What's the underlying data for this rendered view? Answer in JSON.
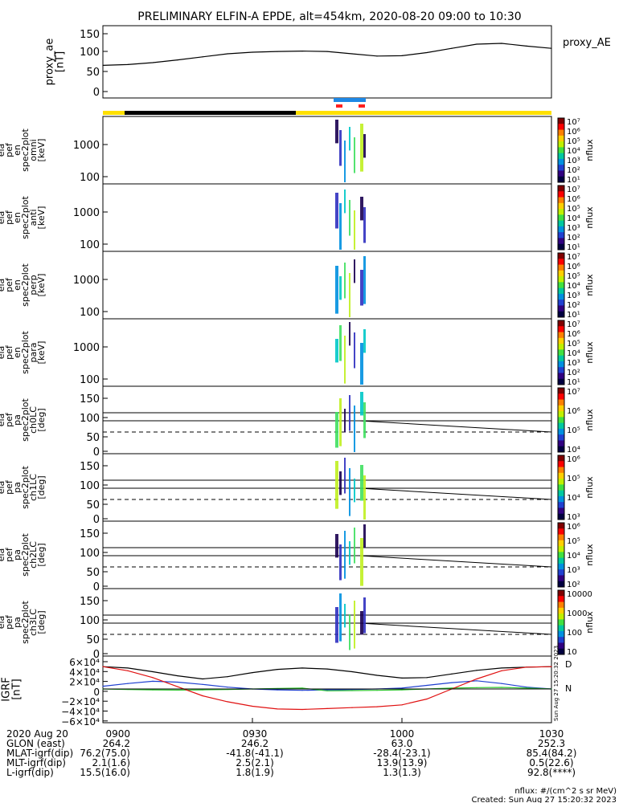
{
  "title": "PRELIMINARY ELFIN-A EPDE, alt=454km, 2020-08-20 09:00 to 10:30",
  "colors": {
    "status_bar": "#ffe000",
    "eclipse_bar": "#000000",
    "fast_survey": "#1e88e5",
    "science_zone": "#ff2020",
    "grf_total": "#000000",
    "grf_x": "#1f3fd0",
    "grf_y": "#2cc52c",
    "grf_z": "#e01010"
  },
  "panels": [
    {
      "id": "proxy_ae",
      "ylabel": [
        "proxy_ae",
        "[nT]"
      ],
      "right_label": "proxy_AE",
      "ticks": [
        "150",
        "100",
        "50",
        "0"
      ]
    },
    {
      "id": "omni",
      "ylabel": [
        "ela",
        "pef",
        "en",
        "spec2plot",
        "omni",
        "[keV]"
      ],
      "ticks": [
        "1000",
        "100"
      ],
      "bar_label": "nflux",
      "bar_ticks": [
        "10⁷",
        "10⁶",
        "10⁵",
        "10⁴",
        "10³",
        "10²",
        "10¹"
      ]
    },
    {
      "id": "anti",
      "ylabel": [
        "ela",
        "pef",
        "en",
        "spec2plot",
        "anti",
        "[keV]"
      ],
      "ticks": [
        "1000",
        "100"
      ],
      "bar_label": "nflux",
      "bar_ticks": [
        "10⁷",
        "10⁶",
        "10⁵",
        "10⁴",
        "10³",
        "10²",
        "10¹"
      ]
    },
    {
      "id": "perp",
      "ylabel": [
        "ela",
        "pef",
        "en",
        "spec2plot",
        "perp",
        "[keV]"
      ],
      "ticks": [
        "1000",
        "100"
      ],
      "bar_label": "nflux",
      "bar_ticks": [
        "10⁷",
        "10⁶",
        "10⁵",
        "10⁴",
        "10³",
        "10²",
        "10¹"
      ]
    },
    {
      "id": "para",
      "ylabel": [
        "ela",
        "pef",
        "en",
        "spec2plot",
        "para",
        "[keV]"
      ],
      "ticks": [
        "1000",
        "100"
      ],
      "bar_label": "nflux",
      "bar_ticks": [
        "10⁷",
        "10⁶",
        "10⁵",
        "10⁴",
        "10³",
        "10²",
        "10¹"
      ]
    },
    {
      "id": "ch0LC",
      "ylabel": [
        "ela",
        "pef",
        "pa",
        "spec2plot",
        "ch0LC",
        "[deg]"
      ],
      "ticks": [
        "150",
        "100",
        "50",
        "0"
      ],
      "bar_label": "nflux",
      "bar_ticks": [
        "10⁷",
        "10⁶",
        "10⁵",
        "10⁴"
      ]
    },
    {
      "id": "ch1LC",
      "ylabel": [
        "ela",
        "pef",
        "pa",
        "spec2plot",
        "ch1LC",
        "[deg]"
      ],
      "ticks": [
        "150",
        "100",
        "50",
        "0"
      ],
      "bar_label": "nflux",
      "bar_ticks": [
        "10⁶",
        "10⁵",
        "10⁴",
        "10³"
      ]
    },
    {
      "id": "ch2LC",
      "ylabel": [
        "ela",
        "pef",
        "pa",
        "spec2plot",
        "ch2LC",
        "[deg]"
      ],
      "ticks": [
        "150",
        "100",
        "50",
        "0"
      ],
      "bar_label": "nflux",
      "bar_ticks": [
        "10⁶",
        "10⁵",
        "10⁴",
        "10³",
        "10²"
      ]
    },
    {
      "id": "ch3LC",
      "ylabel": [
        "ela",
        "pef",
        "pa",
        "spec2plot",
        "ch3LC",
        "[deg]"
      ],
      "ticks": [
        "150",
        "100",
        "50",
        "0"
      ],
      "bar_label": "nflux",
      "bar_ticks": [
        "10000",
        "1000",
        "100",
        "10"
      ]
    },
    {
      "id": "igrf",
      "ylabel": [
        "IGRF",
        "[nT]"
      ],
      "ticks": [
        "6×10⁴",
        "4×10⁴",
        "2×10⁴",
        "0",
        "−2×10⁴",
        "−4×10⁴",
        "−6×10⁴"
      ],
      "right_marks": [
        "D",
        "N"
      ],
      "side_stamp": "Sun Aug 27 15:20:32 2023"
    }
  ],
  "chart_data": [
    {
      "type": "line",
      "panel": "proxy_ae",
      "x": [
        "09:00",
        "09:05",
        "09:10",
        "09:15",
        "09:20",
        "09:25",
        "09:30",
        "09:35",
        "09:40",
        "09:45",
        "09:50",
        "09:55",
        "10:00",
        "10:05",
        "10:10",
        "10:15",
        "10:20",
        "10:25",
        "10:30"
      ],
      "series": [
        {
          "values": [
            68,
            70,
            75,
            82,
            90,
            98,
            102,
            104,
            105,
            104,
            98,
            92,
            93,
            101,
            112,
            123,
            125,
            118,
            112
          ]
        }
      ],
      "ylim": [
        0,
        150
      ]
    },
    {
      "type": "line",
      "panel": "igrf",
      "x": [
        "09:00",
        "09:05",
        "09:10",
        "09:15",
        "09:20",
        "09:25",
        "09:30",
        "09:35",
        "09:40",
        "09:45",
        "09:50",
        "09:55",
        "10:00",
        "10:05",
        "10:10",
        "10:15",
        "10:20",
        "10:25",
        "10:30"
      ],
      "series": [
        {
          "values": [
            49000,
            46000,
            38000,
            29000,
            22000,
            27000,
            36000,
            43000,
            46000,
            44000,
            38000,
            30000,
            24000,
            25000,
            33000,
            41000,
            46000,
            48000,
            49000
          ]
        },
        {
          "values": [
            6000,
            12000,
            17000,
            15000,
            10000,
            4000,
            0,
            -2000,
            -3000,
            -2000,
            -1000,
            0,
            2000,
            8000,
            14000,
            18000,
            12000,
            4000,
            0
          ]
        },
        {
          "values": [
            0,
            -1000,
            -2000,
            -2500,
            -2000,
            -1000,
            0,
            1000,
            2000,
            -4000,
            -3500,
            -3000,
            -2000,
            0,
            2000,
            3000,
            3500,
            2000,
            0
          ]
        },
        {
          "values": [
            49000,
            40000,
            25000,
            5000,
            -15000,
            -28000,
            -38000,
            -44000,
            -45000,
            -43000,
            -41000,
            -39000,
            -35000,
            -22000,
            0,
            22000,
            40000,
            48000,
            49000
          ]
        }
      ],
      "ylim": [
        -60000,
        60000
      ]
    }
  ],
  "footer": {
    "rows": [
      {
        "label": "2020 Aug 20",
        "values": [
          "0900",
          "0930",
          "1000",
          "1030"
        ]
      },
      {
        "label": "GLON (east)",
        "values": [
          "264.2",
          "246.2",
          "63.0",
          "252.3"
        ]
      },
      {
        "label": "MLAT-igrf(dip)",
        "values": [
          "76.2(75.0)",
          "-41.8(-41.1)",
          "-28.4(-23.1)",
          "85.4(84.2)"
        ]
      },
      {
        "label": "MLT-igrf(dip)",
        "values": [
          "2.1(1.6)",
          "2.5(2.1)",
          "13.9(13.9)",
          "0.5(22.6)"
        ]
      },
      {
        "label": "L-igrf(dip)",
        "values": [
          "15.5(16.0)",
          "1.8(1.9)",
          "1.3(1.3)",
          "92.8(****)"
        ]
      }
    ],
    "units_note": "nflux: #/(cm^2 s sr MeV)",
    "created": "Created: Sun Aug 27 15:20:32 2023"
  }
}
